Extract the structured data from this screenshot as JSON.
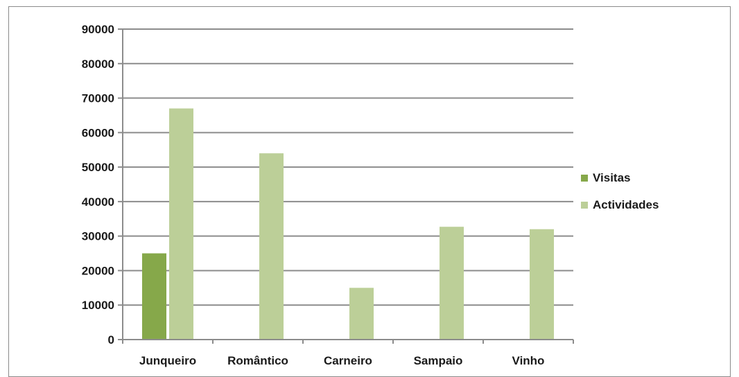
{
  "chart_data": {
    "type": "bar",
    "categories": [
      "Junqueiro",
      "Romântico",
      "Carneiro",
      "Sampaio",
      "Vinho"
    ],
    "series": [
      {
        "name": "Visitas",
        "color": "#86a84a",
        "values": [
          25000,
          0,
          0,
          0,
          0
        ]
      },
      {
        "name": "Actividades",
        "color": "#bccf98",
        "values": [
          67000,
          54000,
          15000,
          32700,
          32000
        ]
      }
    ],
    "ylim": [
      0,
      90000
    ],
    "yticks": [
      "0",
      "10000",
      "20000",
      "30000",
      "40000",
      "50000",
      "60000",
      "70000",
      "80000",
      "90000"
    ],
    "grid": true,
    "legend": "right"
  }
}
